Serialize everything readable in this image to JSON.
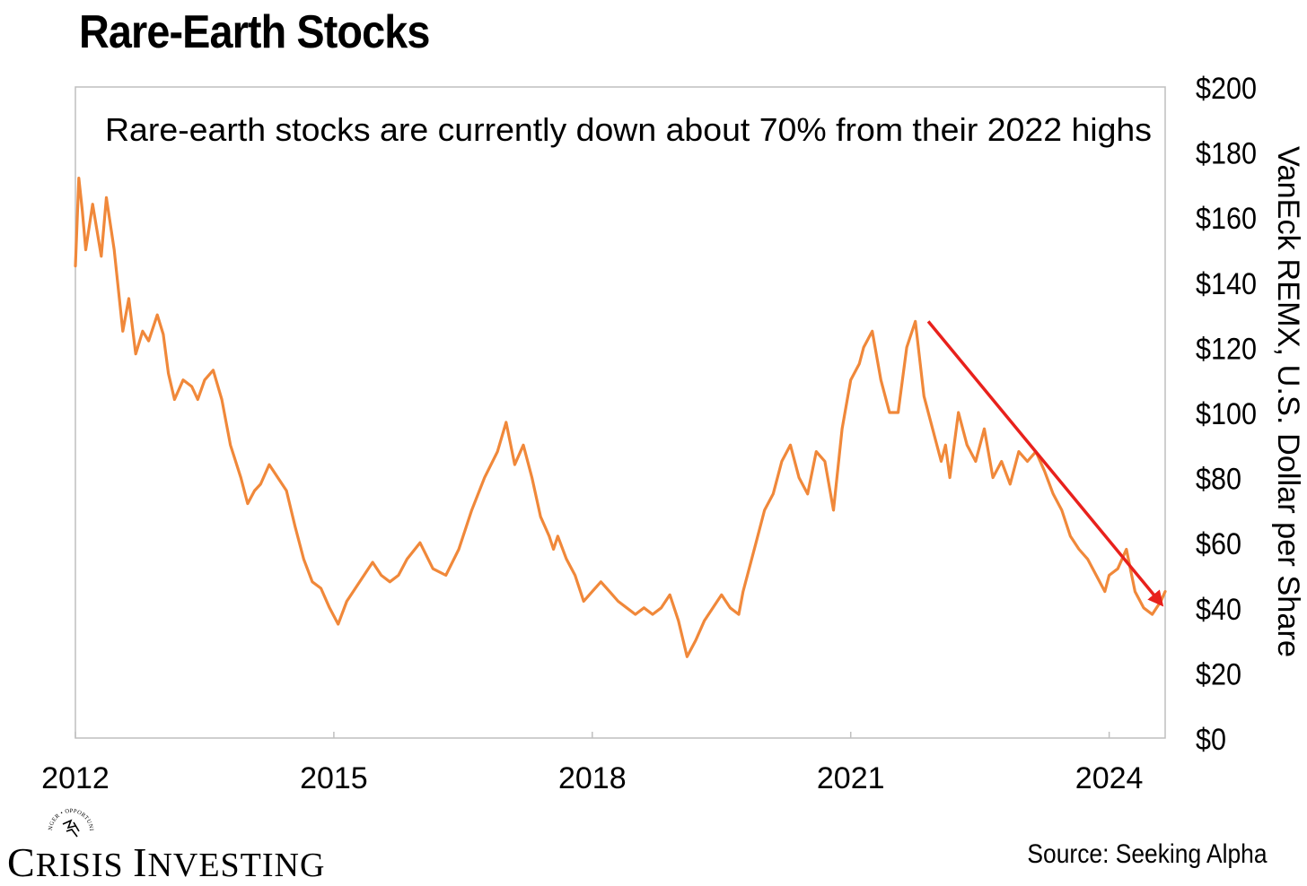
{
  "title": "Rare-Earth Stocks",
  "source": "Source: Seeking Alpha",
  "brand": {
    "name": "Crisis Investing",
    "seal_text": "DANGER • OPPORTUNITY"
  },
  "colors": {
    "series": "#F0883A",
    "arrow": "#E8211C",
    "frame": "#BFBFBF",
    "text": "#000000"
  },
  "chart_data": {
    "type": "line",
    "annotation": "Rare-earth stocks are currently down about 70% from their 2022 highs",
    "ylabel": "VanEck REMX, U.S. Dollar per Share",
    "xlim": [
      2012.0,
      2024.65
    ],
    "ylim": [
      0,
      200
    ],
    "y_ticks": [
      "$0",
      "$20",
      "$40",
      "$60",
      "$80",
      "$100",
      "$120",
      "$140",
      "$160",
      "$180",
      "$200"
    ],
    "y_tick_values": [
      0,
      20,
      40,
      60,
      80,
      100,
      120,
      140,
      160,
      180,
      200
    ],
    "x_ticks": [
      "2012",
      "2015",
      "2018",
      "2021",
      "2024"
    ],
    "x_tick_values": [
      2012,
      2015,
      2018,
      2021,
      2024
    ],
    "grid": false,
    "series": [
      {
        "name": "VanEck REMX",
        "x": [
          2012.0,
          2012.04,
          2012.08,
          2012.12,
          2012.2,
          2012.3,
          2012.36,
          2012.45,
          2012.55,
          2012.62,
          2012.7,
          2012.78,
          2012.85,
          2012.95,
          2013.02,
          2013.08,
          2013.15,
          2013.25,
          2013.35,
          2013.42,
          2013.5,
          2013.6,
          2013.7,
          2013.8,
          2013.92,
          2014.0,
          2014.08,
          2014.15,
          2014.25,
          2014.35,
          2014.45,
          2014.55,
          2014.65,
          2014.75,
          2014.85,
          2014.95,
          2015.05,
          2015.15,
          2015.25,
          2015.35,
          2015.45,
          2015.55,
          2015.65,
          2015.75,
          2015.85,
          2016.0,
          2016.15,
          2016.3,
          2016.45,
          2016.6,
          2016.75,
          2016.9,
          2017.0,
          2017.1,
          2017.2,
          2017.3,
          2017.4,
          2017.5,
          2017.55,
          2017.6,
          2017.7,
          2017.8,
          2017.9,
          2018.0,
          2018.1,
          2018.2,
          2018.3,
          2018.4,
          2018.5,
          2018.6,
          2018.7,
          2018.8,
          2018.9,
          2019.0,
          2019.1,
          2019.2,
          2019.3,
          2019.4,
          2019.5,
          2019.6,
          2019.7,
          2019.75,
          2019.8,
          2019.9,
          2020.0,
          2020.1,
          2020.2,
          2020.3,
          2020.4,
          2020.5,
          2020.6,
          2020.7,
          2020.8,
          2020.9,
          2021.0,
          2021.1,
          2021.15,
          2021.25,
          2021.35,
          2021.45,
          2021.55,
          2021.65,
          2021.75,
          2021.85,
          2021.95,
          2022.05,
          2022.1,
          2022.15,
          2022.25,
          2022.35,
          2022.45,
          2022.55,
          2022.65,
          2022.75,
          2022.85,
          2022.95,
          2023.05,
          2023.15,
          2023.25,
          2023.35,
          2023.45,
          2023.55,
          2023.65,
          2023.75,
          2023.85,
          2023.95,
          2024.0,
          2024.1,
          2024.2,
          2024.3,
          2024.4,
          2024.5,
          2024.6,
          2024.65
        ],
        "values": [
          145,
          172,
          162,
          150,
          164,
          148,
          166,
          150,
          125,
          135,
          118,
          125,
          122,
          130,
          124,
          112,
          104,
          110,
          108,
          104,
          110,
          113,
          104,
          90,
          80,
          72,
          76,
          78,
          84,
          80,
          76,
          65,
          55,
          48,
          46,
          40,
          35,
          42,
          46,
          50,
          54,
          50,
          48,
          50,
          55,
          60,
          52,
          50,
          58,
          70,
          80,
          88,
          97,
          84,
          90,
          80,
          68,
          62,
          58,
          62,
          55,
          50,
          42,
          45,
          48,
          45,
          42,
          40,
          38,
          40,
          38,
          40,
          44,
          36,
          25,
          30,
          36,
          40,
          44,
          40,
          38,
          45,
          50,
          60,
          70,
          75,
          85,
          90,
          80,
          75,
          88,
          85,
          70,
          95,
          110,
          115,
          120,
          125,
          110,
          100,
          100,
          120,
          128,
          105,
          95,
          85,
          90,
          80,
          100,
          90,
          85,
          95,
          80,
          85,
          78,
          88,
          85,
          88,
          82,
          75,
          70,
          62,
          58,
          55,
          50,
          45,
          50,
          52,
          58,
          45,
          40,
          38,
          42,
          45
        ]
      }
    ],
    "trend_arrow": {
      "from": [
        2021.9,
        128
      ],
      "to": [
        2024.65,
        40
      ]
    }
  }
}
